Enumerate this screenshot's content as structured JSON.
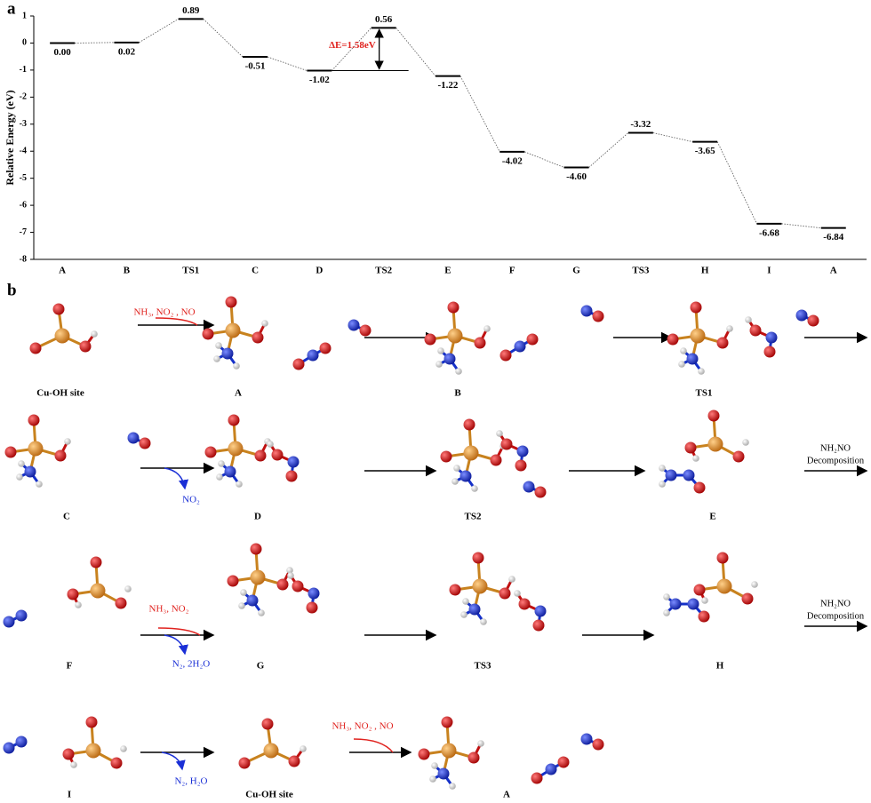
{
  "chart_data": {
    "type": "line",
    "panel_label": "a",
    "ylabel": "Relative Energy (eV)",
    "categories": [
      "A",
      "B",
      "TS1",
      "C",
      "D",
      "TS2",
      "E",
      "F",
      "G",
      "TS3",
      "H",
      "I",
      "A"
    ],
    "values": [
      0.0,
      0.02,
      0.89,
      -0.51,
      -1.02,
      0.56,
      -1.22,
      -4.02,
      -4.6,
      -3.32,
      -3.65,
      -6.68,
      -6.84
    ],
    "value_labels": [
      "0.00",
      "0.02",
      "0.89",
      "-0.51",
      "-1.02",
      "0.56",
      "-1.22",
      "-4.02",
      "-4.60",
      "-3.32",
      "-3.65",
      "-6.68",
      "-6.84"
    ],
    "color": "#000000",
    "ylim": [
      -8,
      1
    ],
    "yticks": [
      -8,
      -7,
      -6,
      -5,
      -4,
      -3,
      -2,
      -1,
      0,
      1
    ],
    "annotation": "ΔE=1.58eV"
  },
  "mechanism": {
    "panel_label": "b",
    "rows": [
      {
        "species": [
          "Cu-OH site",
          "A",
          "B",
          "TS1"
        ],
        "reagents": [
          "NH₃, NO₂ , NO"
        ]
      },
      {
        "species": [
          "C",
          "D",
          "TS2",
          "E"
        ],
        "products": [
          "NO₂"
        ],
        "process": [
          "NH₂NO",
          "Decomposition"
        ]
      },
      {
        "species": [
          "F",
          "G",
          "TS3",
          "H"
        ],
        "reagents": [
          "NH₃, NO₂"
        ],
        "products": [
          "N₂, 2H₂O"
        ],
        "process": [
          "NH₂NO",
          "Decomposition"
        ]
      },
      {
        "species": [
          "I",
          "Cu-OH site",
          "A"
        ],
        "products": [
          "N₂, H₂O"
        ],
        "reagents": [
          "NH₃, NO₂ , NO"
        ]
      }
    ]
  }
}
